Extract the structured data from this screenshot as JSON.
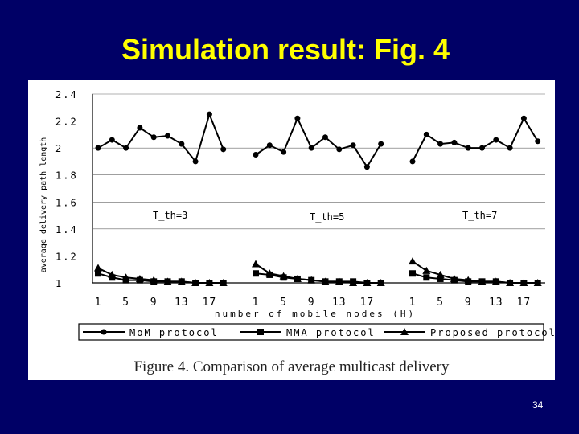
{
  "slide": {
    "title": "Simulation result: Fig. 4",
    "page_number": "34"
  },
  "figure": {
    "caption": "Figure 4. Comparison of average multicast delivery"
  },
  "colors": {
    "background": "#000066",
    "title": "#ffff00",
    "series": "#000000"
  },
  "chart_data": {
    "type": "line",
    "ylabel": "average delivery path length",
    "xlabel": "number of mobile nodes (H)",
    "ylim": [
      1,
      2.4
    ],
    "yticks": [
      "2.4",
      "2.2",
      "2",
      "1.8",
      "1.6",
      "1.4",
      "1.2",
      "1"
    ],
    "grid": "horizontal",
    "legend_position": "bottom",
    "x_tick_labels": [
      "1",
      "5",
      "9",
      "13",
      "17"
    ],
    "groups": [
      {
        "label": "T_th=3",
        "x": [
          1,
          3,
          5,
          7,
          9,
          11,
          13,
          15,
          17,
          19
        ],
        "series": [
          {
            "name": "MoM protocol",
            "marker": "circle",
            "values": [
              2.0,
              2.06,
              2.0,
              2.15,
              2.08,
              2.09,
              2.03,
              1.9,
              2.25,
              1.99
            ]
          },
          {
            "name": "MMA protocol",
            "marker": "square",
            "values": [
              1.07,
              1.04,
              1.02,
              1.02,
              1.01,
              1.01,
              1.01,
              1.0,
              1.0,
              1.0
            ]
          },
          {
            "name": "Proposed protocol",
            "marker": "triangle",
            "values": [
              1.11,
              1.06,
              1.04,
              1.03,
              1.02,
              1.01,
              1.01,
              1.0,
              1.0,
              1.0
            ]
          }
        ]
      },
      {
        "label": "T_th=5",
        "x": [
          1,
          3,
          5,
          7,
          9,
          11,
          13,
          15,
          17,
          19
        ],
        "series": [
          {
            "name": "MoM protocol",
            "marker": "circle",
            "values": [
              1.95,
              2.02,
              1.97,
              2.22,
              2.0,
              2.08,
              1.99,
              2.02,
              1.86,
              2.03
            ]
          },
          {
            "name": "MMA protocol",
            "marker": "square",
            "values": [
              1.07,
              1.06,
              1.04,
              1.03,
              1.02,
              1.01,
              1.01,
              1.01,
              1.0,
              1.0
            ]
          },
          {
            "name": "Proposed protocol",
            "marker": "triangle",
            "values": [
              1.14,
              1.07,
              1.05,
              1.03,
              1.02,
              1.01,
              1.01,
              1.0,
              1.0,
              1.0
            ]
          }
        ]
      },
      {
        "label": "T_th=7",
        "x": [
          1,
          3,
          5,
          7,
          9,
          11,
          13,
          15,
          17,
          19
        ],
        "series": [
          {
            "name": "MoM protocol",
            "marker": "circle",
            "values": [
              1.9,
              2.1,
              2.03,
              2.04,
              2.0,
              2.0,
              2.06,
              2.0,
              2.22,
              2.05
            ]
          },
          {
            "name": "MMA protocol",
            "marker": "square",
            "values": [
              1.07,
              1.04,
              1.03,
              1.02,
              1.01,
              1.01,
              1.01,
              1.0,
              1.0,
              1.0
            ]
          },
          {
            "name": "Proposed protocol",
            "marker": "triangle",
            "values": [
              1.16,
              1.09,
              1.06,
              1.03,
              1.02,
              1.01,
              1.01,
              1.0,
              1.0,
              1.0
            ]
          }
        ]
      }
    ]
  }
}
